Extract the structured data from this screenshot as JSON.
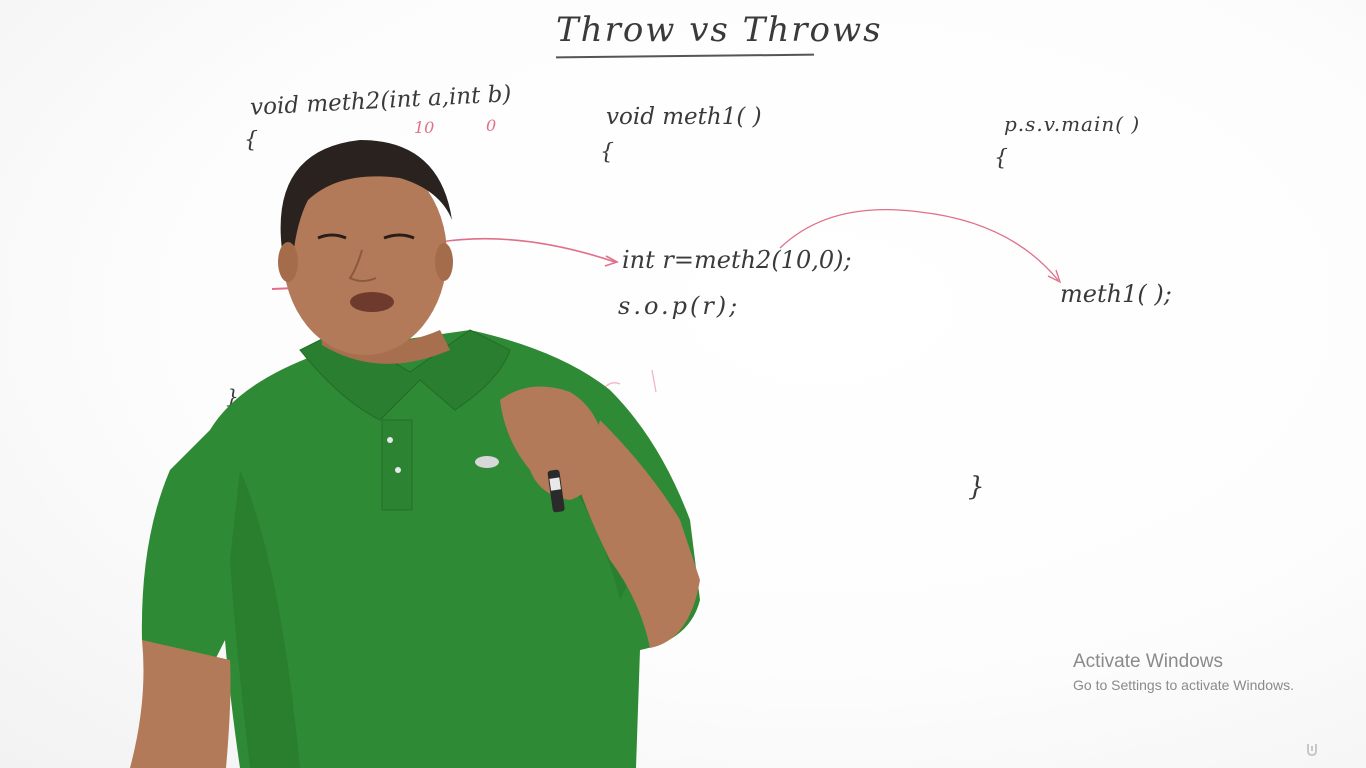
{
  "board": {
    "title": "Throw vs Throws",
    "meth2": {
      "signature": "void meth2(int a,int b)",
      "open_brace": "{",
      "close_brace": "}",
      "arg_a_value": "10",
      "arg_b_value": "0"
    },
    "meth1": {
      "signature": "void meth1( )",
      "open_brace": "{",
      "line1": "int r=meth2(10,0);",
      "line2": "s.o.p(r);"
    },
    "main": {
      "signature": "p.s.v.main( )",
      "open_brace": "{",
      "call": "meth1( );",
      "close_brace": "}"
    }
  },
  "watermark": {
    "title": "Activate Windows",
    "subtitle": "Go to Settings to activate Windows."
  },
  "logo_text": "Udemy",
  "colors": {
    "ink": "#3a3a3a",
    "red_ink": "#e0708a",
    "shirt": "#2f8a35",
    "skin": "#b27a58"
  }
}
